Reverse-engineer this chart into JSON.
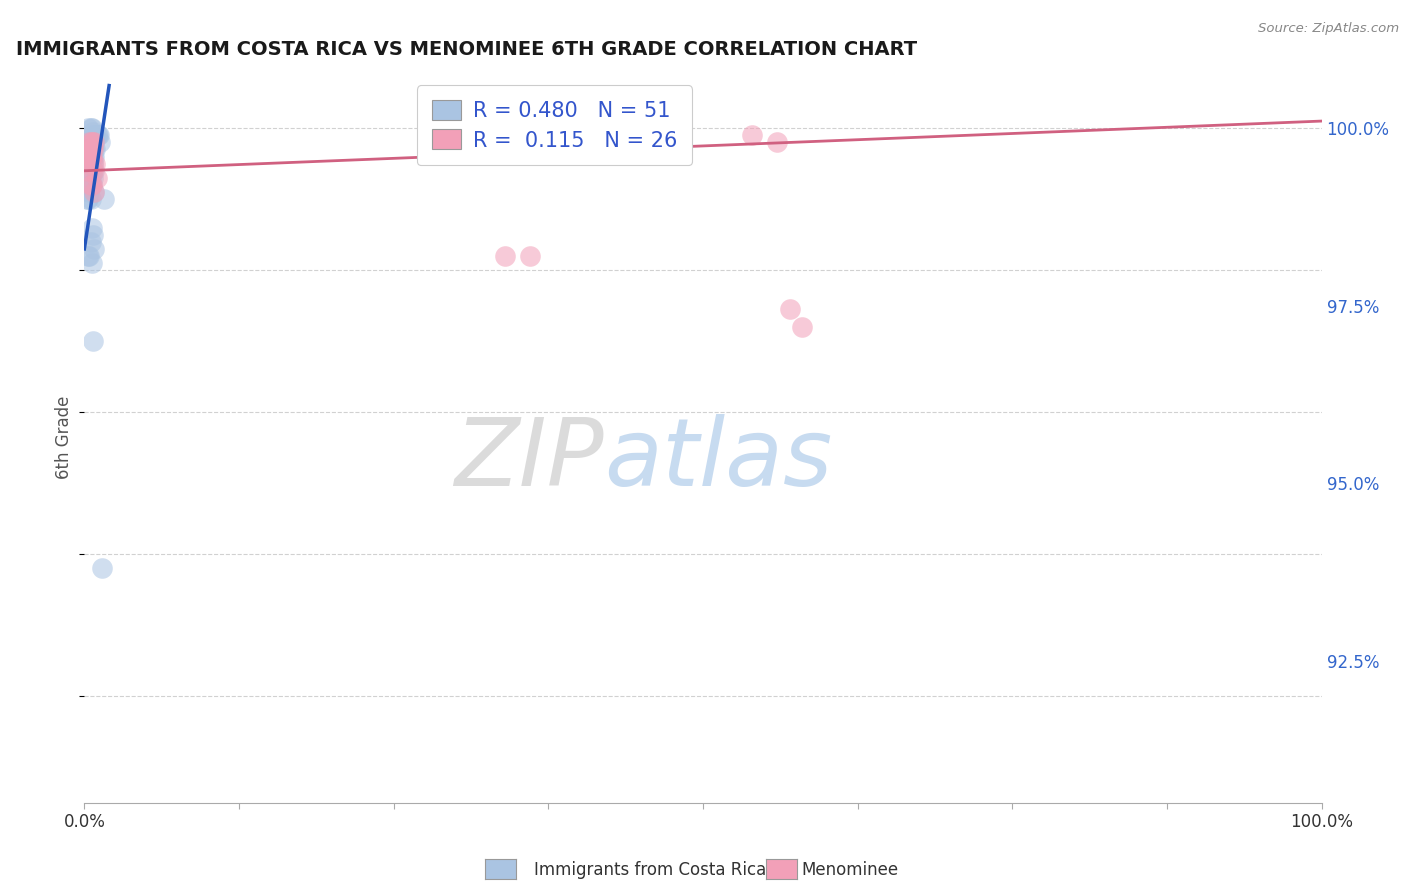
{
  "title": "IMMIGRANTS FROM COSTA RICA VS MENOMINEE 6TH GRADE CORRELATION CHART",
  "source": "Source: ZipAtlas.com",
  "ylabel": "6th Grade",
  "ylabel_right_labels": [
    "100.0%",
    "97.5%",
    "95.0%",
    "92.5%"
  ],
  "ylabel_right_values": [
    1.0,
    0.975,
    0.95,
    0.925
  ],
  "xmin": 0.0,
  "xmax": 1.0,
  "ymin": 0.905,
  "ymax": 1.008,
  "legend_blue_r": "0.480",
  "legend_blue_n": "51",
  "legend_pink_r": "0.115",
  "legend_pink_n": "26",
  "legend_blue_label": "Immigrants from Costa Rica",
  "legend_pink_label": "Menominee",
  "blue_color": "#aac4e2",
  "pink_color": "#f2a0b8",
  "blue_line_color": "#2255bb",
  "pink_line_color": "#d06080",
  "watermark_zip": "ZIP",
  "watermark_atlas": "atlas",
  "blue_scatter_x": [
    0.003,
    0.005,
    0.006,
    0.007,
    0.008,
    0.009,
    0.01,
    0.011,
    0.012,
    0.013,
    0.004,
    0.006,
    0.007,
    0.008,
    0.009,
    0.005,
    0.007,
    0.008,
    0.006,
    0.004,
    0.005,
    0.007,
    0.008,
    0.006,
    0.004,
    0.003,
    0.005,
    0.007,
    0.008,
    0.004,
    0.006,
    0.004,
    0.005,
    0.007,
    0.003,
    0.006,
    0.008,
    0.004,
    0.005,
    0.003,
    0.016,
    0.002,
    0.006,
    0.007,
    0.005,
    0.008,
    0.004,
    0.003,
    0.006,
    0.007,
    0.014
  ],
  "blue_scatter_y": [
    1.0,
    1.0,
    1.0,
    0.9995,
    0.999,
    0.999,
    0.999,
    0.999,
    0.999,
    0.998,
    0.998,
    0.998,
    0.998,
    0.998,
    0.997,
    0.997,
    0.997,
    0.997,
    0.997,
    0.997,
    0.996,
    0.996,
    0.996,
    0.996,
    0.995,
    0.995,
    0.995,
    0.995,
    0.994,
    0.994,
    0.994,
    0.993,
    0.993,
    0.993,
    0.992,
    0.992,
    0.991,
    0.991,
    0.99,
    0.99,
    0.99,
    0.99,
    0.986,
    0.985,
    0.984,
    0.983,
    0.982,
    0.982,
    0.981,
    0.97,
    0.938
  ],
  "pink_scatter_x": [
    0.004,
    0.005,
    0.007,
    0.008,
    0.006,
    0.005,
    0.009,
    0.006,
    0.003,
    0.007,
    0.006,
    0.01,
    0.005,
    0.006,
    0.004,
    0.007,
    0.005,
    0.006,
    0.004,
    0.008,
    0.34,
    0.36,
    0.54,
    0.56,
    0.57,
    0.58
  ],
  "pink_scatter_y": [
    0.998,
    0.997,
    0.997,
    0.998,
    0.996,
    0.996,
    0.995,
    0.997,
    0.994,
    0.995,
    0.998,
    0.993,
    0.992,
    0.998,
    0.997,
    0.994,
    0.996,
    0.992,
    0.995,
    0.991,
    0.982,
    0.982,
    0.999,
    0.998,
    0.9745,
    0.972
  ],
  "blue_trend_x0": 0.0,
  "blue_trend_x1": 0.02,
  "blue_trend_y0": 0.983,
  "blue_trend_y1": 1.006,
  "pink_trend_x0": 0.0,
  "pink_trend_x1": 1.0,
  "pink_trend_y0": 0.994,
  "pink_trend_y1": 1.001,
  "grid_color": "#cccccc",
  "background_color": "#ffffff",
  "xtick_positions": [
    0.0,
    0.125,
    0.25,
    0.375,
    0.5,
    0.625,
    0.75,
    0.875,
    1.0
  ]
}
